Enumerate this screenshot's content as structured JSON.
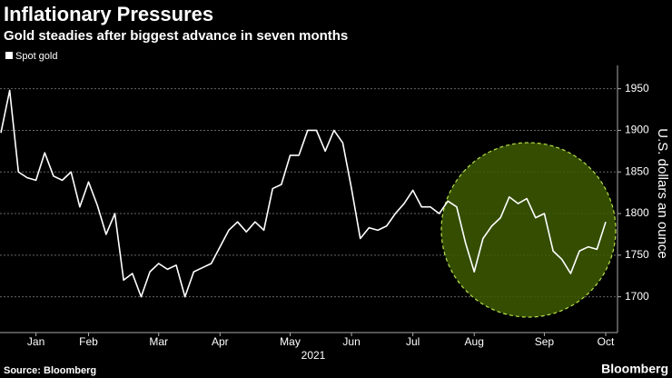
{
  "chart_data": {
    "type": "line",
    "title": "Inflationary Pressures",
    "subtitle": "Gold steadies after biggest advance in seven months",
    "y_label": "U.S. dollars an ounce",
    "x_label": "2021",
    "source": "Source: Bloomberg",
    "brand": "Bloomberg",
    "categories": [
      null,
      null,
      null,
      null,
      "Jan",
      null,
      null,
      null,
      null,
      null,
      "Feb",
      null,
      null,
      null,
      null,
      null,
      null,
      null,
      "Mar",
      null,
      null,
      null,
      null,
      null,
      null,
      "Apr",
      null,
      null,
      null,
      null,
      null,
      null,
      null,
      "May",
      null,
      null,
      null,
      null,
      null,
      null,
      "Jun",
      null,
      null,
      null,
      null,
      null,
      null,
      "Jul",
      null,
      null,
      null,
      null,
      null,
      null,
      "Aug",
      null,
      null,
      null,
      null,
      null,
      null,
      null,
      "Sep",
      null,
      null,
      null,
      null,
      null,
      null,
      "Oct"
    ],
    "series": [
      {
        "name": "Spot gold",
        "color": "#ffffff",
        "values": [
          1897,
          1948,
          1850,
          1843,
          1840,
          1873,
          1845,
          1840,
          1850,
          1808,
          1838,
          1810,
          1775,
          1800,
          1720,
          1728,
          1700,
          1730,
          1740,
          1733,
          1738,
          1700,
          1730,
          1735,
          1740,
          1760,
          1780,
          1790,
          1778,
          1790,
          1780,
          1830,
          1835,
          1870,
          1870,
          1900,
          1900,
          1875,
          1900,
          1885,
          1830,
          1770,
          1783,
          1780,
          1785,
          1800,
          1812,
          1828,
          1808,
          1808,
          1800,
          1815,
          1808,
          1765,
          1730,
          1770,
          1785,
          1795,
          1820,
          1812,
          1818,
          1795,
          1800,
          1755,
          1745,
          1728,
          1755,
          1760,
          1757,
          1790
        ]
      }
    ],
    "ylim": [
      1657,
      1978
    ],
    "yticks": [
      1700,
      1750,
      1800,
      1850,
      1900,
      1950
    ],
    "grid": true
  }
}
